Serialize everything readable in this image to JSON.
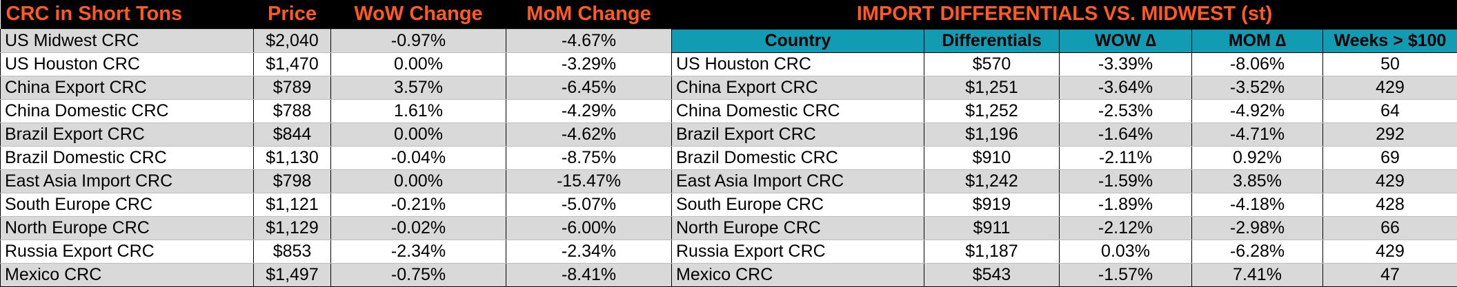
{
  "left": {
    "headers": [
      "CRC in Short Tons",
      "Price",
      "WoW Change",
      "MoM Change"
    ],
    "rows": [
      [
        "US Midwest CRC",
        "$2,040",
        "-0.97%",
        "-4.67%"
      ],
      [
        "US Houston CRC",
        "$1,470",
        "0.00%",
        "-3.29%"
      ],
      [
        "China Export CRC",
        "$789",
        "3.57%",
        "-6.45%"
      ],
      [
        "China Domestic CRC",
        "$788",
        "1.61%",
        "-4.29%"
      ],
      [
        "Brazil Export CRC",
        "$844",
        "0.00%",
        "-4.62%"
      ],
      [
        "Brazil Domestic CRC",
        "$1,130",
        "-0.04%",
        "-8.75%"
      ],
      [
        "East Asia Import CRC",
        "$798",
        "0.00%",
        "-15.47%"
      ],
      [
        "South Europe CRC",
        "$1,121",
        "-0.21%",
        "-5.07%"
      ],
      [
        "North Europe CRC",
        "$1,129",
        "-0.02%",
        "-6.00%"
      ],
      [
        "Russia Export CRC",
        "$853",
        "-2.34%",
        "-2.34%"
      ],
      [
        "Mexico CRC",
        "$1,497",
        "-0.75%",
        "-8.41%"
      ]
    ]
  },
  "right": {
    "title": "IMPORT DIFFERENTIALS VS. MIDWEST (st)",
    "headers": [
      "Country",
      "Differentials",
      "WOW ∆",
      "MOM ∆",
      "Weeks > $100"
    ],
    "rows": [
      [
        "US Houston CRC",
        "$570",
        "-3.39%",
        "-8.06%",
        "50"
      ],
      [
        "China Export CRC",
        "$1,251",
        "-3.64%",
        "-3.52%",
        "429"
      ],
      [
        "China Domestic CRC",
        "$1,252",
        "-2.53%",
        "-4.92%",
        "64"
      ],
      [
        "Brazil Export CRC",
        "$1,196",
        "-1.64%",
        "-4.71%",
        "292"
      ],
      [
        "Brazil Domestic CRC",
        "$910",
        "-2.11%",
        "0.92%",
        "69"
      ],
      [
        "East Asia Import CRC",
        "$1,242",
        "-1.59%",
        "3.85%",
        "429"
      ],
      [
        "South Europe CRC",
        "$919",
        "-1.89%",
        "-4.18%",
        "428"
      ],
      [
        "North Europe CRC",
        "$911",
        "-2.12%",
        "-2.98%",
        "66"
      ],
      [
        "Russia Export CRC",
        "$1,187",
        "0.03%",
        "-6.28%",
        "429"
      ],
      [
        "Mexico CRC",
        "$543",
        "-1.57%",
        "7.41%",
        "47"
      ]
    ]
  }
}
